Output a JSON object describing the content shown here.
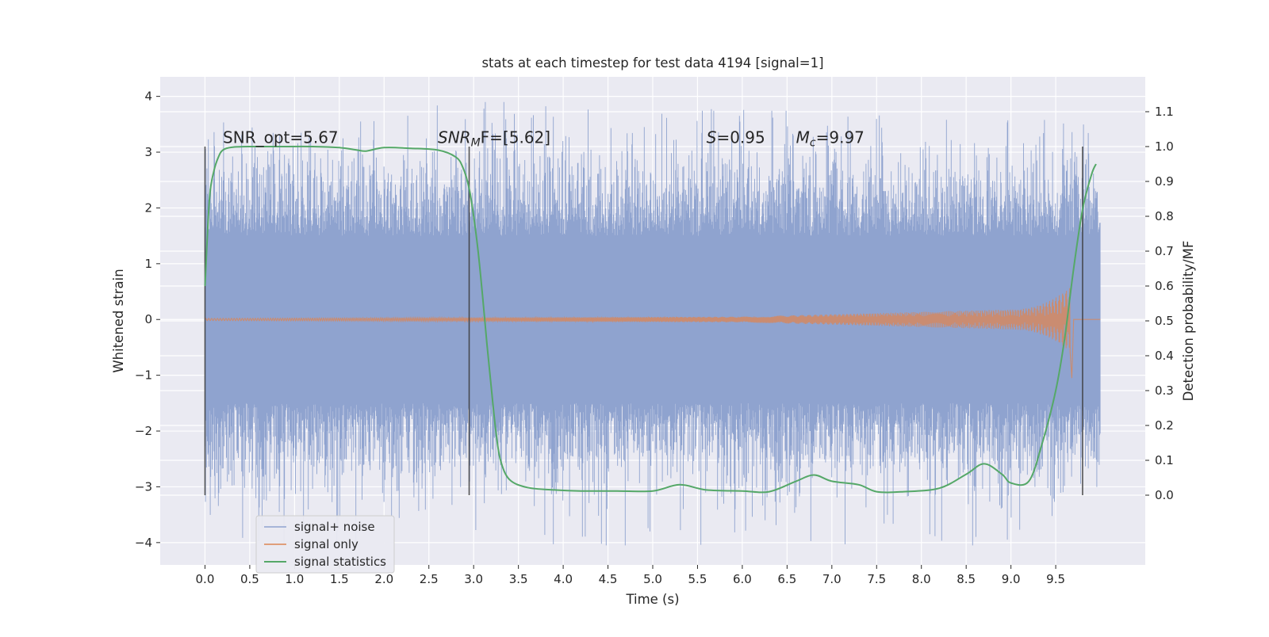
{
  "chart_data": {
    "type": "line",
    "title": "stats at each timestep for test data 4194 [signal=1]",
    "xlabel": "Time (s)",
    "ylabel_left": "Whitened strain",
    "ylabel_right": "Detection probability/MF",
    "x_range": [
      -0.5,
      10.5
    ],
    "ylim_left": [
      -4.4,
      4.35
    ],
    "ylim_right": [
      -0.2,
      1.2
    ],
    "x_ticks": [
      0.0,
      0.5,
      1.0,
      1.5,
      2.0,
      2.5,
      3.0,
      3.5,
      4.0,
      4.5,
      5.0,
      5.5,
      6.0,
      6.5,
      7.0,
      7.5,
      8.0,
      8.5,
      9.0,
      9.5
    ],
    "x_tick_labels": [
      "0.0",
      "0.5",
      "1.0",
      "1.5",
      "2.0",
      "2.5",
      "3.0",
      "3.5",
      "4.0",
      "4.5",
      "5.0",
      "5.5",
      "6.0",
      "6.5",
      "7.0",
      "7.5",
      "8.0",
      "8.5",
      "9.0",
      "9.5"
    ],
    "y_left_ticks": [
      -4,
      -3,
      -2,
      -1,
      0,
      1,
      2,
      3,
      4
    ],
    "y_left_tick_labels": [
      "−4",
      "−3",
      "−2",
      "−1",
      "0",
      "1",
      "2",
      "3",
      "4"
    ],
    "y_right_ticks": [
      0.0,
      0.1,
      0.2,
      0.3,
      0.4,
      0.5,
      0.6,
      0.7,
      0.8,
      0.9,
      1.0,
      1.1
    ],
    "y_right_tick_labels": [
      "0.0",
      "0.1",
      "0.2",
      "0.3",
      "0.4",
      "0.5",
      "0.6",
      "0.7",
      "0.8",
      "0.9",
      "1.0",
      "1.1"
    ],
    "grid": true,
    "legend_position": "lower-left",
    "colors": {
      "background": "#eaeaf2",
      "grid": "#ffffff",
      "signal_noise": "#8fa3cf",
      "signal_only": "#dd8452",
      "signal_statistics": "#55a868",
      "vlines": "#3a3a3a"
    },
    "series": [
      {
        "name": "signal+ noise",
        "axis": "left",
        "style": "dense noise band",
        "x_range": [
          0.0,
          10.0
        ],
        "envelope_typical": 1.5,
        "peak_max": 3.9,
        "peak_min": -4.05
      },
      {
        "name": "signal only",
        "axis": "left",
        "style": "chirp",
        "x_range": [
          0.0,
          9.68
        ],
        "amplitude_start": 0.02,
        "amplitude_at_6": 0.05,
        "amplitude_at_9": 0.18,
        "amplitude_peak": 0.6,
        "end_dip": -1.05
      },
      {
        "name": "signal statistics",
        "axis": "right",
        "x": [
          0.0,
          0.05,
          0.1,
          0.15,
          0.2,
          0.3,
          0.5,
          0.8,
          1.2,
          1.5,
          1.7,
          1.8,
          2.0,
          2.3,
          2.6,
          2.8,
          2.88,
          2.95,
          3.0,
          3.05,
          3.1,
          3.15,
          3.2,
          3.25,
          3.3,
          3.4,
          3.6,
          3.9,
          4.2,
          4.6,
          5.0,
          5.3,
          5.6,
          6.0,
          6.3,
          6.6,
          6.8,
          7.0,
          7.3,
          7.5,
          7.8,
          8.2,
          8.5,
          8.7,
          8.9,
          9.0,
          9.2,
          9.35,
          9.5,
          9.6,
          9.7,
          9.8,
          9.9,
          9.95
        ],
        "y": [
          0.6,
          0.85,
          0.93,
          0.97,
          0.99,
          0.998,
          1.0,
          1.0,
          1.0,
          0.997,
          0.99,
          0.987,
          0.997,
          0.995,
          0.99,
          0.97,
          0.94,
          0.88,
          0.8,
          0.7,
          0.57,
          0.43,
          0.3,
          0.18,
          0.1,
          0.045,
          0.022,
          0.015,
          0.012,
          0.012,
          0.012,
          0.03,
          0.015,
          0.012,
          0.01,
          0.04,
          0.058,
          0.04,
          0.03,
          0.01,
          0.01,
          0.02,
          0.06,
          0.09,
          0.06,
          0.035,
          0.04,
          0.15,
          0.3,
          0.45,
          0.65,
          0.82,
          0.92,
          0.95
        ]
      }
    ],
    "vlines_right_units": {
      "x": [
        0.0,
        2.95,
        9.8
      ],
      "y_bottom": 0.0,
      "y_top": 1.0
    },
    "annotations": [
      {
        "name": "snr-opt",
        "x": 0.2,
        "y": 1.01,
        "parts": [
          {
            "text": "SNR_opt=5.67",
            "italic": false
          }
        ]
      },
      {
        "name": "snr-mf",
        "x": 2.6,
        "y": 1.01,
        "parts": [
          {
            "text": "SNR",
            "italic": true
          },
          {
            "text": "M",
            "italic": true,
            "sub": true
          },
          {
            "text": "F=[5.62]",
            "italic": false
          }
        ]
      },
      {
        "name": "s-stat",
        "x": 5.6,
        "y": 1.01,
        "parts": [
          {
            "text": "S",
            "italic": true
          },
          {
            "text": "=0.95",
            "italic": false
          }
        ]
      },
      {
        "name": "mc-stat",
        "x": 6.6,
        "y": 1.01,
        "parts": [
          {
            "text": "M",
            "italic": true
          },
          {
            "text": "c",
            "italic": true,
            "sub": true
          },
          {
            "text": "=9.97",
            "italic": false
          }
        ]
      }
    ]
  }
}
